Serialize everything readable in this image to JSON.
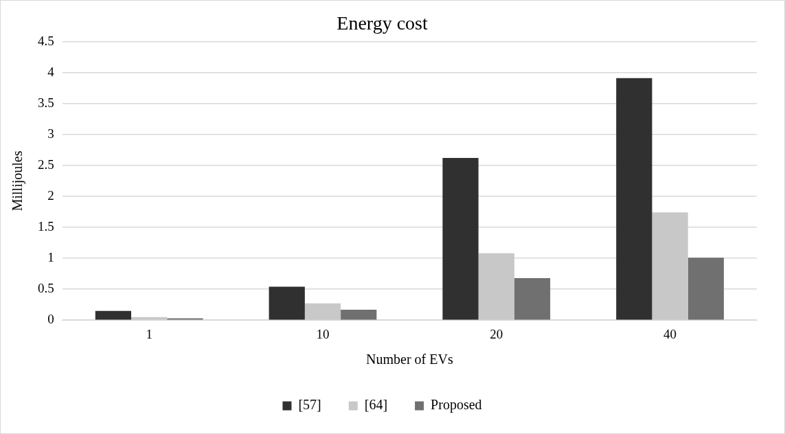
{
  "chart_data": {
    "type": "bar",
    "title": "Energy cost",
    "xlabel": "Number of EVs",
    "ylabel": "Millijoules",
    "categories": [
      "1",
      "10",
      "20",
      "40"
    ],
    "series": [
      {
        "name": "[57]",
        "color": "#303030",
        "values": [
          0.15,
          0.54,
          2.62,
          3.91
        ]
      },
      {
        "name": "[64]",
        "color": "#c8c8c8",
        "values": [
          0.05,
          0.27,
          1.08,
          1.74
        ]
      },
      {
        "name": "Proposed",
        "color": "#707070",
        "values": [
          0.03,
          0.17,
          0.68,
          1.01
        ]
      }
    ],
    "ylim": [
      0,
      4.5
    ],
    "yticks": [
      0,
      0.5,
      1,
      1.5,
      2,
      2.5,
      3,
      3.5,
      4,
      4.5
    ],
    "grid": "y",
    "legend": "bottom"
  }
}
